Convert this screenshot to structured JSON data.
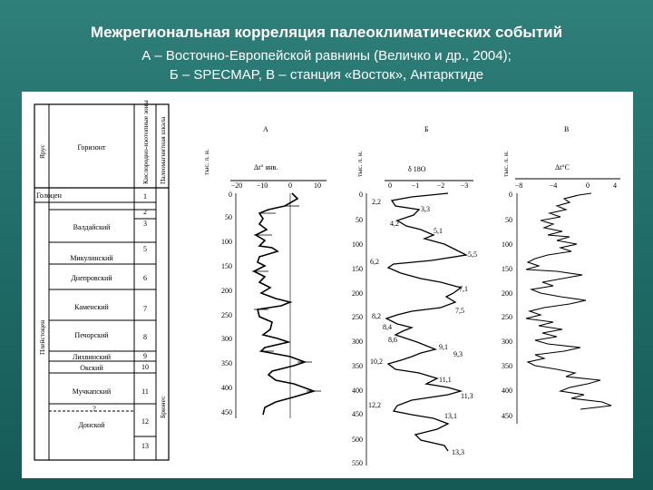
{
  "slide": {
    "title": "Межрегиональная корреляция палеоклиматических событий",
    "subtitle_line1": "А – Восточно-Европейской равнины (Величко и др., 2004);",
    "subtitle_line2": "Б – SPECMAP, В – станция «Восток», Антарктиде"
  },
  "table": {
    "headers": {
      "stage": "Ярус",
      "horizon": "Горизонт",
      "isotope": "Кислородно-изотопные зоны",
      "paleomag": "Палеомагнитная шкала"
    },
    "stages": [
      "Голоцен",
      "Плейстоцен"
    ],
    "paleomag_label": "Брюнес",
    "rows": [
      {
        "horizon": "Голоцен",
        "zone": "1"
      },
      {
        "horizon": "",
        "zone": "2"
      },
      {
        "horizon": "Валдайский",
        "zone": "3"
      },
      {
        "horizon": "Микулинский",
        "zone": "5"
      },
      {
        "horizon": "Днепровский",
        "zone": "6"
      },
      {
        "horizon": "Каменский",
        "zone": "7"
      },
      {
        "horizon": "Печорский",
        "zone": "8"
      },
      {
        "horizon": "Лихвинский",
        "zone": "9"
      },
      {
        "horizon": "Окский",
        "zone": "10"
      },
      {
        "horizon": "Мучкапский",
        "zone": "11"
      },
      {
        "horizon": "?",
        "zone": ""
      },
      {
        "horizon": "Донской",
        "zone": "12"
      },
      {
        "horizon": "",
        "zone": "13"
      }
    ]
  },
  "panels": {
    "A": {
      "letter": "А",
      "axis_title": "тыс. л. н.",
      "x_label": "Δt° янв.",
      "x_ticks": [
        "−20",
        "−10",
        "0",
        "10"
      ],
      "y_ticks": [
        "0",
        "50",
        "100",
        "150",
        "200",
        "250",
        "300",
        "350",
        "400",
        "450"
      ]
    },
    "B": {
      "letter": "Б",
      "axis_title": "тыс. л. н.",
      "x_label": "δ 18O",
      "x_ticks": [
        "0",
        "−1",
        "−2",
        "−3"
      ],
      "y_ticks": [
        "0",
        "50",
        "100",
        "150",
        "200",
        "250",
        "300",
        "350",
        "400",
        "450",
        "500",
        "550"
      ],
      "annotations": [
        "2,2",
        "3,3",
        "4,2",
        "5,1",
        "5,5",
        "6,2",
        "7,1",
        "7,5",
        "8,2",
        "8,4",
        "8,6",
        "9,1",
        "9,3",
        "10,2",
        "11,1",
        "11,3",
        "12,2",
        "13,1",
        "13,3"
      ]
    },
    "V": {
      "letter": "В",
      "axis_title": "тыс. л. н.",
      "x_label": "Δt°C",
      "x_ticks": [
        "−8",
        "−4",
        "0",
        "4"
      ],
      "y_ticks": [
        "0",
        "50",
        "100",
        "150",
        "200",
        "250",
        "300",
        "350",
        "400",
        "450"
      ]
    }
  }
}
